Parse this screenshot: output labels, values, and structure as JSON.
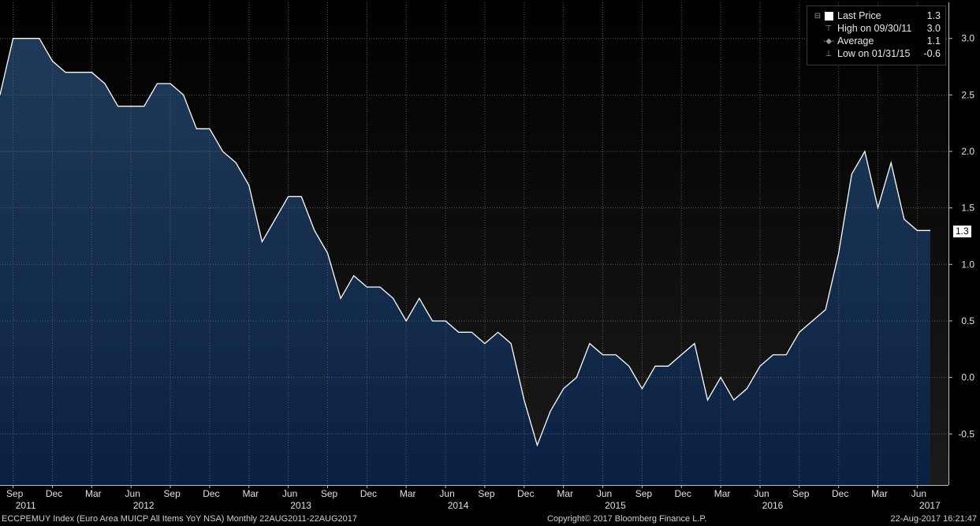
{
  "chart_data": {
    "type": "area",
    "ticker": "ECCPEMUY Index",
    "title": "(Euro Area MUICP All Items YoY NSA)",
    "frequency": "Monthly",
    "range": "22AUG2011-22AUG2017",
    "ylim": [
      -1.0,
      3.2
    ],
    "y_ticks": [
      "3.0",
      "2.5",
      "2.0",
      "1.5",
      "1.0",
      "0.5",
      "0.0",
      "-0.5"
    ],
    "x_month_ticks": [
      "Sep",
      "Dec",
      "Mar",
      "Jun",
      "Sep",
      "Dec",
      "Mar",
      "Jun",
      "Sep",
      "Dec",
      "Mar",
      "Jun",
      "Sep",
      "Dec",
      "Mar",
      "Jun",
      "Sep",
      "Dec",
      "Mar",
      "Jun",
      "Sep",
      "Dec",
      "Mar",
      "Jun"
    ],
    "x_year_ticks": [
      "2011",
      "2012",
      "2013",
      "2014",
      "2015",
      "2016",
      "2017"
    ],
    "grid": true,
    "legend_position": "top-right",
    "series": [
      {
        "name": "Last Price",
        "start": "2011-08",
        "end": "2017-07",
        "values": [
          2.5,
          3.0,
          3.0,
          3.0,
          2.8,
          2.7,
          2.7,
          2.7,
          2.6,
          2.4,
          2.4,
          2.4,
          2.6,
          2.6,
          2.5,
          2.2,
          2.2,
          2.0,
          1.9,
          1.7,
          1.2,
          1.4,
          1.6,
          1.6,
          1.3,
          1.1,
          0.7,
          0.9,
          0.8,
          0.8,
          0.7,
          0.5,
          0.7,
          0.5,
          0.5,
          0.4,
          0.4,
          0.3,
          0.4,
          0.3,
          -0.2,
          -0.6,
          -0.3,
          -0.1,
          0.0,
          0.3,
          0.2,
          0.2,
          0.1,
          -0.1,
          0.1,
          0.1,
          0.2,
          0.3,
          -0.2,
          0.0,
          -0.2,
          -0.1,
          0.1,
          0.2,
          0.2,
          0.4,
          0.5,
          0.6,
          1.1,
          1.8,
          2.0,
          1.5,
          1.9,
          1.4,
          1.3,
          1.3
        ]
      }
    ],
    "legend": [
      {
        "label": "Last Price",
        "value": "1.3",
        "marker": "swatch"
      },
      {
        "label": "High on 09/30/11",
        "value": "3.0",
        "marker": "high"
      },
      {
        "label": "Average",
        "value": "1.1",
        "marker": "avg"
      },
      {
        "label": "Low on 01/31/15",
        "value": "-0.6",
        "marker": "low"
      }
    ],
    "last_value_label": "1.3"
  },
  "footer": {
    "left": "ECCPEMUY Index (Euro Area MUICP All Items YoY NSA)  Monthly 22AUG2011-22AUG2017",
    "center": "Copyright© 2017 Bloomberg Finance L.P.",
    "right": "22-Aug-2017 16:21:47"
  },
  "colors": {
    "fill_top": "#1f3a58",
    "fill_bottom": "#0b2143",
    "line": "#ffffff",
    "bg_top": "#000000",
    "bg_bottom": "#1b1b1b",
    "grid": "#5a5a5a"
  }
}
